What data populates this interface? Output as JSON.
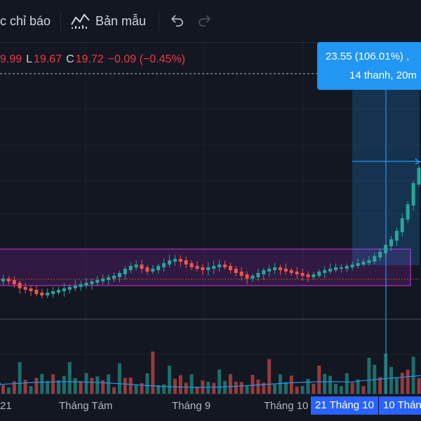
{
  "toolbar": {
    "indicators_label": "c chỉ báo",
    "templates_label": "Bản mẫu"
  },
  "legend": {
    "open_partial": "9.99",
    "low_label": "L",
    "low_value": "19.67",
    "close_label": "C",
    "close_value": "19.72",
    "change": "−0.09 (−0.45%)"
  },
  "measure_tooltip": {
    "line1": "23.55 (106.01%) ,",
    "line2": "14 thanh, 20m"
  },
  "time_axis": {
    "ticks": [
      "21",
      "Tháng Tám",
      "Tháng 9",
      "Tháng 10"
    ],
    "highlighted": [
      "21 Tháng 10",
      "10 Thán"
    ]
  },
  "colors": {
    "background": "#131722",
    "up": "#26a69a",
    "down": "#ef5350",
    "range_box": "#9c27b0",
    "measure": "#2196f3",
    "axis_highlight": "#2962ff"
  }
}
